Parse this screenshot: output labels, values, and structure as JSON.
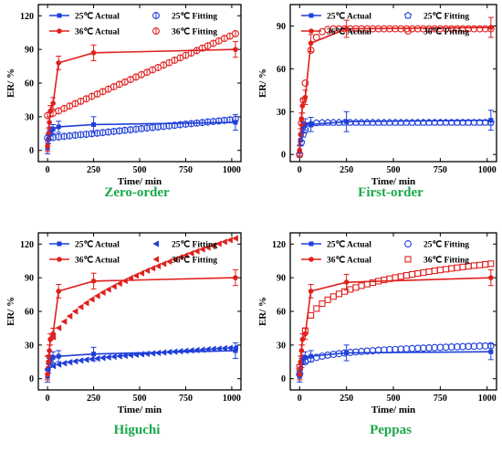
{
  "chart_data": [
    {
      "type": "line",
      "caption": "Zero-order",
      "xlabel": "Time/ min",
      "ylabel": "ER/ %",
      "xlim": [
        -50,
        1050
      ],
      "ylim": [
        -10,
        130
      ],
      "x_ticks": [
        0,
        250,
        500,
        750,
        1000
      ],
      "y_ticks": [
        0,
        30,
        60,
        90,
        120
      ],
      "legend_position": "top",
      "series": [
        {
          "name": "25℃ Actual",
          "kind": "actual",
          "color": "#1f3fd9",
          "marker": "square",
          "x": [
            0,
            5,
            10,
            15,
            30,
            60,
            250,
            1020
          ],
          "y": [
            2,
            10,
            14,
            17,
            19,
            21,
            23,
            25
          ],
          "err": [
            5,
            4,
            4,
            4,
            4,
            5,
            7,
            7
          ]
        },
        {
          "name": "36℃ Actual",
          "kind": "actual",
          "color": "#e0201d",
          "marker": "circle",
          "x": [
            0,
            5,
            10,
            15,
            30,
            60,
            250,
            1020
          ],
          "y": [
            4,
            15,
            25,
            35,
            42,
            78,
            87,
            90
          ],
          "err": [
            5,
            5,
            5,
            5,
            5,
            6,
            7,
            7
          ]
        },
        {
          "name": "25℃ Fitting",
          "kind": "fit",
          "color": "#1f3fd9",
          "marker": "ocircle-bar",
          "x": [
            0,
            30,
            60,
            90,
            120,
            150,
            180,
            210,
            240,
            270,
            300,
            330,
            360,
            390,
            420,
            450,
            480,
            510,
            540,
            570,
            600,
            630,
            660,
            690,
            720,
            750,
            780,
            810,
            840,
            870,
            900,
            930,
            960,
            990,
            1020
          ],
          "y": [
            11.0,
            11.5,
            12.0,
            12.5,
            13.0,
            13.5,
            14.0,
            14.4,
            14.9,
            15.4,
            15.9,
            16.4,
            16.9,
            17.4,
            17.9,
            18.4,
            18.9,
            19.4,
            19.9,
            20.4,
            20.9,
            21.4,
            21.9,
            22.4,
            22.9,
            23.4,
            23.8,
            24.3,
            24.8,
            25.3,
            25.8,
            26.3,
            26.8,
            27.3,
            27.8
          ]
        },
        {
          "name": "36℃ Fitting",
          "kind": "fit",
          "color": "#e0201d",
          "marker": "ocircle-bar",
          "x": [
            0,
            30,
            60,
            90,
            120,
            150,
            180,
            210,
            240,
            270,
            300,
            330,
            360,
            390,
            420,
            450,
            480,
            510,
            540,
            570,
            600,
            630,
            660,
            690,
            720,
            750,
            780,
            810,
            840,
            870,
            900,
            930,
            960,
            990,
            1020
          ],
          "y": [
            31.0,
            33.1,
            35.2,
            37.4,
            39.6,
            41.7,
            43.8,
            46.0,
            48.2,
            50.3,
            52.4,
            54.6,
            56.8,
            58.9,
            61.0,
            63.2,
            65.4,
            67.5,
            69.6,
            71.8,
            73.9,
            76.1,
            78.2,
            80.4,
            82.5,
            84.7,
            86.8,
            89.0,
            91.2,
            93.3,
            95.4,
            97.6,
            99.8,
            101.9,
            104.0
          ]
        }
      ]
    },
    {
      "type": "line",
      "caption": "First-order",
      "xlabel": "Time/ min",
      "ylabel": "ER/ %",
      "xlim": [
        -50,
        1050
      ],
      "ylim": [
        -5,
        105
      ],
      "x_ticks": [
        0,
        250,
        500,
        750,
        1000
      ],
      "y_ticks": [
        0,
        30,
        60,
        90
      ],
      "legend_position": "top",
      "series": [
        {
          "name": "25℃ Actual",
          "kind": "actual",
          "color": "#1f3fd9",
          "marker": "square",
          "x": [
            0,
            5,
            10,
            15,
            30,
            60,
            250,
            1020
          ],
          "y": [
            2,
            10,
            14,
            19,
            21,
            21,
            23,
            24
          ],
          "err": [
            4,
            4,
            4,
            4,
            4,
            5,
            7,
            7
          ]
        },
        {
          "name": "36℃ Actual",
          "kind": "actual",
          "color": "#e0201d",
          "marker": "circle",
          "x": [
            0,
            5,
            10,
            15,
            30,
            60,
            250,
            1020
          ],
          "y": [
            3,
            14,
            25,
            34,
            40,
            78,
            88,
            89
          ],
          "err": [
            4,
            4,
            4,
            5,
            5,
            6,
            6,
            7
          ]
        },
        {
          "name": "25℃ Fitting",
          "kind": "fit",
          "color": "#1f3fd9",
          "marker": "pentagon",
          "x": [
            0,
            10,
            20,
            30,
            60,
            90,
            120,
            150,
            180,
            210,
            240,
            270,
            300,
            330,
            360,
            390,
            420,
            450,
            480,
            510,
            540,
            570,
            600,
            630,
            660,
            690,
            720,
            750,
            780,
            810,
            840,
            870,
            900,
            930,
            960,
            990,
            1020
          ],
          "y": [
            0,
            8.3,
            14.0,
            17.3,
            21.2,
            22.1,
            22.3,
            22.4,
            22.4,
            22.4,
            22.4,
            22.4,
            22.4,
            22.4,
            22.4,
            22.4,
            22.4,
            22.4,
            22.4,
            22.4,
            22.4,
            22.4,
            22.4,
            22.4,
            22.4,
            22.4,
            22.4,
            22.4,
            22.4,
            22.4,
            22.4,
            22.4,
            22.4,
            22.4,
            22.4,
            22.4,
            22.4
          ]
        },
        {
          "name": "36℃ Fitting",
          "kind": "fit",
          "color": "#e0201d",
          "marker": "ocircle",
          "x": [
            0,
            10,
            20,
            30,
            60,
            90,
            120,
            150,
            180,
            210,
            240,
            270,
            300,
            330,
            360,
            390,
            420,
            450,
            480,
            510,
            540,
            570,
            600,
            630,
            660,
            690,
            720,
            750,
            780,
            810,
            840,
            870,
            900,
            930,
            960,
            990,
            1020
          ],
          "y": [
            0,
            22,
            38,
            50,
            73,
            82,
            86,
            87.5,
            88,
            88,
            88,
            88,
            88,
            88,
            88,
            88,
            88,
            88,
            88,
            88,
            88,
            88,
            88,
            88,
            88,
            88,
            88,
            88,
            88,
            88,
            88,
            88,
            88,
            88,
            88,
            88,
            88
          ]
        }
      ]
    },
    {
      "type": "line",
      "caption": "Higuchi",
      "xlabel": "Time/ min",
      "ylabel": "ER/ %",
      "xlim": [
        -50,
        1050
      ],
      "ylim": [
        -10,
        130
      ],
      "x_ticks": [
        0,
        250,
        500,
        750,
        1000
      ],
      "y_ticks": [
        0,
        30,
        60,
        90,
        120
      ],
      "legend_position": "top",
      "series": [
        {
          "name": "25℃ Actual",
          "kind": "actual",
          "color": "#1f3fd9",
          "marker": "square",
          "x": [
            0,
            5,
            10,
            15,
            30,
            60,
            250,
            1020
          ],
          "y": [
            2,
            9,
            14,
            17,
            19,
            20,
            22,
            25
          ],
          "err": [
            5,
            4,
            4,
            4,
            5,
            5,
            6,
            7
          ]
        },
        {
          "name": "36℃ Actual",
          "kind": "actual",
          "color": "#e0201d",
          "marker": "circle",
          "x": [
            0,
            5,
            10,
            15,
            30,
            60,
            250,
            1020
          ],
          "y": [
            4,
            15,
            25,
            35,
            40,
            78,
            87,
            90
          ],
          "err": [
            5,
            5,
            5,
            5,
            5,
            6,
            7,
            7
          ]
        },
        {
          "name": "25℃ Fitting",
          "kind": "fit",
          "color": "#1f3fd9",
          "marker": "tri-left",
          "x": [
            0,
            30,
            60,
            90,
            120,
            150,
            180,
            210,
            240,
            270,
            300,
            330,
            360,
            390,
            420,
            450,
            480,
            510,
            540,
            570,
            600,
            630,
            660,
            690,
            720,
            750,
            780,
            810,
            840,
            870,
            900,
            930,
            960,
            990,
            1020
          ],
          "y": [
            8.0,
            11.3,
            12.7,
            13.8,
            14.7,
            15.5,
            16.2,
            16.9,
            17.5,
            18.0,
            18.6,
            19.1,
            19.6,
            20.1,
            20.5,
            21.0,
            21.4,
            21.8,
            22.2,
            22.6,
            23.0,
            23.4,
            23.8,
            24.1,
            24.5,
            24.8,
            25.2,
            25.5,
            25.8,
            26.2,
            26.5,
            26.8,
            27.1,
            27.4,
            27.7
          ]
        },
        {
          "name": "36℃ Fitting",
          "kind": "fit",
          "color": "#e0201d",
          "marker": "tri-left",
          "x": [
            0,
            30,
            60,
            90,
            120,
            150,
            180,
            210,
            240,
            270,
            300,
            330,
            360,
            390,
            420,
            450,
            480,
            510,
            540,
            570,
            600,
            630,
            660,
            690,
            720,
            750,
            780,
            810,
            840,
            870,
            900,
            930,
            960,
            990,
            1020
          ],
          "y": [
            20.0,
            37.6,
            45.2,
            50.9,
            55.7,
            60.0,
            63.9,
            67.4,
            70.7,
            73.8,
            76.8,
            79.5,
            82.2,
            84.8,
            87.2,
            89.6,
            91.9,
            94.1,
            96.3,
            98.4,
            100.4,
            102.4,
            104.4,
            106.3,
            108.2,
            110.0,
            111.8,
            113.6,
            115.3,
            117.0,
            118.7,
            120.3,
            122.0,
            123.6,
            125.1
          ]
        }
      ]
    },
    {
      "type": "line",
      "caption": "Peppas",
      "xlabel": "Time/ min",
      "ylabel": "ER/ %",
      "xlim": [
        -50,
        1050
      ],
      "ylim": [
        -10,
        130
      ],
      "x_ticks": [
        0,
        250,
        500,
        750,
        1000
      ],
      "y_ticks": [
        0,
        30,
        60,
        90,
        120
      ],
      "legend_position": "top",
      "series": [
        {
          "name": "25℃ Actual",
          "kind": "actual",
          "color": "#1f3fd9",
          "marker": "square",
          "x": [
            0,
            5,
            10,
            15,
            30,
            60,
            250,
            1020
          ],
          "y": [
            2,
            9,
            14,
            17,
            19,
            20,
            23,
            24
          ],
          "err": [
            5,
            4,
            4,
            4,
            5,
            5,
            7,
            7
          ]
        },
        {
          "name": "36℃ Actual",
          "kind": "actual",
          "color": "#e0201d",
          "marker": "circle",
          "x": [
            0,
            5,
            10,
            15,
            30,
            60,
            250,
            1020
          ],
          "y": [
            4,
            15,
            25,
            35,
            40,
            78,
            86,
            90
          ],
          "err": [
            5,
            5,
            5,
            5,
            5,
            6,
            7,
            7
          ]
        },
        {
          "name": "25℃ Fitting",
          "kind": "fit",
          "color": "#1f3fd9",
          "marker": "ocircle",
          "x": [
            0,
            30,
            60,
            90,
            120,
            150,
            180,
            210,
            240,
            270,
            300,
            330,
            360,
            390,
            420,
            450,
            480,
            510,
            540,
            570,
            600,
            630,
            660,
            690,
            720,
            750,
            780,
            810,
            840,
            870,
            900,
            930,
            960,
            990,
            1020
          ],
          "y": [
            4.0,
            15.1,
            17.5,
            19.0,
            20.1,
            21.0,
            21.7,
            22.3,
            22.9,
            23.4,
            23.8,
            24.2,
            24.6,
            24.9,
            25.3,
            25.6,
            25.9,
            26.1,
            26.4,
            26.6,
            26.9,
            27.1,
            27.3,
            27.5,
            27.7,
            27.9,
            28.1,
            28.3,
            28.4,
            28.6,
            28.8,
            28.9,
            29.1,
            29.2,
            29.4
          ]
        },
        {
          "name": "36℃ Fitting",
          "kind": "fit",
          "color": "#e0201d",
          "marker": "osquare",
          "x": [
            0,
            30,
            60,
            90,
            120,
            150,
            180,
            210,
            240,
            270,
            300,
            330,
            360,
            390,
            420,
            450,
            480,
            510,
            540,
            570,
            600,
            630,
            660,
            690,
            720,
            750,
            780,
            810,
            840,
            870,
            900,
            930,
            960,
            990,
            1020
          ],
          "y": [
            10.0,
            42.8,
            56.4,
            62.5,
            66.9,
            70.3,
            73.2,
            75.6,
            77.7,
            79.6,
            81.3,
            82.9,
            84.3,
            85.6,
            86.9,
            88.0,
            89.1,
            90.2,
            91.1,
            92.1,
            93.0,
            93.8,
            94.6,
            95.4,
            96.2,
            96.9,
            97.6,
            98.3,
            98.9,
            99.6,
            100.2,
            100.8,
            101.3,
            101.9,
            102.5
          ]
        }
      ]
    }
  ]
}
